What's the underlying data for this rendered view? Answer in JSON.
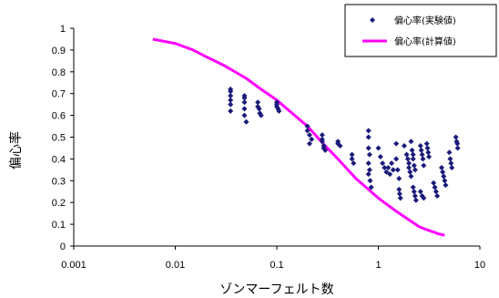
{
  "chart_data": {
    "type": "scatter",
    "title": "",
    "xlabel": "ゾンマーフェルト数",
    "ylabel": "偏心率",
    "xscale": "log",
    "xlim": [
      0.001,
      10
    ],
    "ylim": [
      0,
      1
    ],
    "x_ticks": [
      "0.001",
      "0.01",
      "0.1",
      "1",
      "10"
    ],
    "y_ticks": [
      "0",
      "0.1",
      "0.2",
      "0.3",
      "0.4",
      "0.5",
      "0.6",
      "0.7",
      "0.8",
      "0.9",
      "1"
    ],
    "grid": false,
    "legend_position": "top-right",
    "colors": {
      "experimental": "#1a1a7a",
      "calculated": "#ff00ff"
    },
    "series": [
      {
        "name": "偏心率(実験値)",
        "type": "scatter",
        "points": [
          [
            0.035,
            0.72
          ],
          [
            0.035,
            0.71
          ],
          [
            0.035,
            0.69
          ],
          [
            0.035,
            0.67
          ],
          [
            0.035,
            0.65
          ],
          [
            0.035,
            0.62
          ],
          [
            0.048,
            0.69
          ],
          [
            0.048,
            0.68
          ],
          [
            0.048,
            0.66
          ],
          [
            0.048,
            0.63
          ],
          [
            0.048,
            0.6
          ],
          [
            0.05,
            0.57
          ],
          [
            0.065,
            0.66
          ],
          [
            0.065,
            0.64
          ],
          [
            0.067,
            0.63
          ],
          [
            0.068,
            0.61
          ],
          [
            0.07,
            0.6
          ],
          [
            0.1,
            0.66
          ],
          [
            0.1,
            0.65
          ],
          [
            0.1,
            0.64
          ],
          [
            0.103,
            0.63
          ],
          [
            0.105,
            0.62
          ],
          [
            0.2,
            0.55
          ],
          [
            0.2,
            0.53
          ],
          [
            0.21,
            0.51
          ],
          [
            0.22,
            0.49
          ],
          [
            0.21,
            0.47
          ],
          [
            0.28,
            0.51
          ],
          [
            0.28,
            0.49
          ],
          [
            0.28,
            0.48
          ],
          [
            0.29,
            0.46
          ],
          [
            0.29,
            0.45
          ],
          [
            0.3,
            0.44
          ],
          [
            0.4,
            0.48
          ],
          [
            0.4,
            0.47
          ],
          [
            0.42,
            0.46
          ],
          [
            0.55,
            0.42
          ],
          [
            0.55,
            0.4
          ],
          [
            0.57,
            0.38
          ],
          [
            0.8,
            0.53
          ],
          [
            0.8,
            0.5
          ],
          [
            0.8,
            0.45
          ],
          [
            0.82,
            0.42
          ],
          [
            0.8,
            0.38
          ],
          [
            0.82,
            0.35
          ],
          [
            0.8,
            0.33
          ],
          [
            0.83,
            0.3
          ],
          [
            0.85,
            0.27
          ],
          [
            1,
            0.45
          ],
          [
            1.05,
            0.41
          ],
          [
            1.1,
            0.38
          ],
          [
            1.15,
            0.36
          ],
          [
            1.2,
            0.34
          ],
          [
            1.25,
            0.36
          ],
          [
            1.3,
            0.33
          ],
          [
            1.35,
            0.38
          ],
          [
            1.4,
            0.35
          ],
          [
            1.5,
            0.47
          ],
          [
            1.5,
            0.4
          ],
          [
            1.55,
            0.35
          ],
          [
            1.6,
            0.31
          ],
          [
            1.6,
            0.26
          ],
          [
            1.62,
            0.24
          ],
          [
            1.65,
            0.22
          ],
          [
            1.8,
            0.46
          ],
          [
            1.9,
            0.42
          ],
          [
            1.95,
            0.4
          ],
          [
            2,
            0.38
          ],
          [
            2,
            0.36
          ],
          [
            2.05,
            0.34
          ],
          [
            2.1,
            0.32
          ],
          [
            2.1,
            0.48
          ],
          [
            2.15,
            0.44
          ],
          [
            2.2,
            0.42
          ],
          [
            2.2,
            0.4
          ],
          [
            2.25,
            0.37
          ],
          [
            2.3,
            0.35
          ],
          [
            2.2,
            0.27
          ],
          [
            2.25,
            0.25
          ],
          [
            2.3,
            0.23
          ],
          [
            2.35,
            0.21
          ],
          [
            2.6,
            0.46
          ],
          [
            2.65,
            0.44
          ],
          [
            2.7,
            0.42
          ],
          [
            2.75,
            0.4
          ],
          [
            2.8,
            0.37
          ],
          [
            2.6,
            0.25
          ],
          [
            2.7,
            0.23
          ],
          [
            2.8,
            0.22
          ],
          [
            3,
            0.47
          ],
          [
            3.05,
            0.45
          ],
          [
            3.1,
            0.43
          ],
          [
            3.15,
            0.41
          ],
          [
            3.5,
            0.29
          ],
          [
            3.6,
            0.27
          ],
          [
            3.7,
            0.25
          ],
          [
            3.8,
            0.23
          ],
          [
            4.2,
            0.36
          ],
          [
            4.3,
            0.34
          ],
          [
            4.4,
            0.32
          ],
          [
            4.5,
            0.3
          ],
          [
            4.6,
            0.28
          ],
          [
            5,
            0.43
          ],
          [
            5.1,
            0.4
          ],
          [
            5.2,
            0.38
          ],
          [
            5.3,
            0.36
          ],
          [
            5.8,
            0.5
          ],
          [
            5.9,
            0.48
          ],
          [
            6,
            0.47
          ],
          [
            6.05,
            0.45
          ]
        ]
      },
      {
        "name": "偏心率(計算値)",
        "type": "line",
        "points": [
          [
            0.006,
            0.95
          ],
          [
            0.01,
            0.93
          ],
          [
            0.015,
            0.9
          ],
          [
            0.02,
            0.87
          ],
          [
            0.03,
            0.83
          ],
          [
            0.05,
            0.77
          ],
          [
            0.07,
            0.72
          ],
          [
            0.1,
            0.67
          ],
          [
            0.15,
            0.6
          ],
          [
            0.2,
            0.55
          ],
          [
            0.3,
            0.46
          ],
          [
            0.4,
            0.4
          ],
          [
            0.6,
            0.31
          ],
          [
            0.8,
            0.26
          ],
          [
            1.0,
            0.22
          ],
          [
            1.5,
            0.16
          ],
          [
            2.0,
            0.12
          ],
          [
            2.5,
            0.09
          ],
          [
            3.0,
            0.075
          ],
          [
            4.0,
            0.055
          ],
          [
            4.5,
            0.05
          ]
        ]
      }
    ]
  }
}
